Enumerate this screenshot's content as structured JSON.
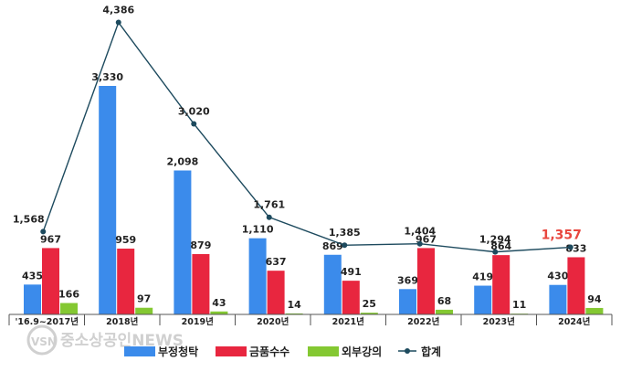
{
  "chart_data": {
    "type": "bar",
    "categories": [
      "'16.9~2017년",
      "2018년",
      "2019년",
      "2020년",
      "2021년",
      "2022년",
      "2023년",
      "2024년"
    ],
    "series": [
      {
        "name": "부정청탁",
        "type": "bar",
        "color": "#3b8beb",
        "values": [
          435,
          3330,
          2098,
          1110,
          869,
          369,
          419,
          430
        ]
      },
      {
        "name": "금품수수",
        "type": "bar",
        "color": "#e8263f",
        "values": [
          967,
          959,
          879,
          637,
          491,
          967,
          864,
          833
        ]
      },
      {
        "name": "외부강의",
        "type": "bar",
        "color": "#84c832",
        "values": [
          166,
          97,
          43,
          14,
          25,
          68,
          11,
          94
        ]
      },
      {
        "name": "합계",
        "type": "line",
        "color": "#1d4a5e",
        "values": [
          1568,
          4386,
          3020,
          1761,
          1385,
          1404,
          1294,
          1357
        ]
      }
    ],
    "highlight": {
      "category": "2024년",
      "series": "합계",
      "color": "#e8473f"
    },
    "bar_label_texts": [
      [
        "435",
        "3,330",
        "2,098",
        "1,110",
        "869",
        "369",
        "419",
        "430"
      ],
      [
        "967",
        "959",
        "879",
        "637",
        "491",
        "967",
        "864",
        "833"
      ],
      [
        "166",
        "97",
        "43",
        "14",
        "25",
        "68",
        "11",
        "94"
      ]
    ],
    "line_label_texts": [
      "1,568",
      "4,386",
      "3,020",
      "1,761",
      "1,385",
      "1,404",
      "1,294",
      "1,357"
    ],
    "legend_position": "bottom",
    "grid": false
  },
  "watermark": {
    "text": "중소상공인NEWS",
    "logo_letters": "VSN"
  }
}
